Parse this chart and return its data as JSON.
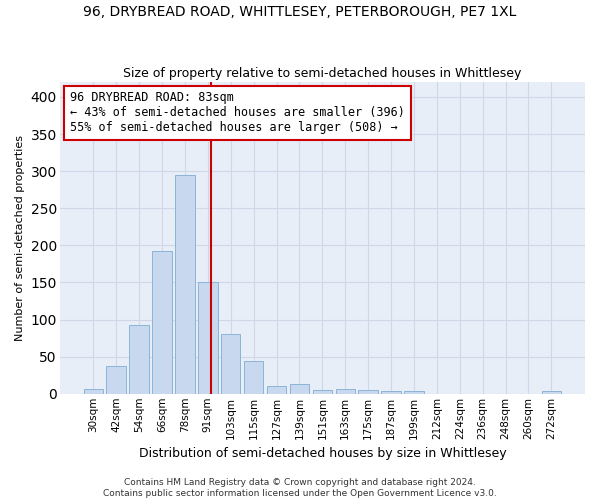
{
  "title1": "96, DRYBREAD ROAD, WHITTLESEY, PETERBOROUGH, PE7 1XL",
  "title2": "Size of property relative to semi-detached houses in Whittlesey",
  "xlabel": "Distribution of semi-detached houses by size in Whittlesey",
  "ylabel": "Number of semi-detached properties",
  "categories": [
    "30sqm",
    "42sqm",
    "54sqm",
    "66sqm",
    "78sqm",
    "91sqm",
    "103sqm",
    "115sqm",
    "127sqm",
    "139sqm",
    "151sqm",
    "163sqm",
    "175sqm",
    "187sqm",
    "199sqm",
    "212sqm",
    "224sqm",
    "236sqm",
    "248sqm",
    "260sqm",
    "272sqm"
  ],
  "values": [
    7,
    38,
    93,
    192,
    295,
    151,
    80,
    44,
    10,
    13,
    5,
    6,
    5,
    4,
    4,
    0,
    0,
    0,
    0,
    0,
    4
  ],
  "bar_color": "#c8d9ef",
  "bar_edge_color": "#8ab4d8",
  "vline_color": "#cc0000",
  "vline_pos": 5.15,
  "annotation_text": "96 DRYBREAD ROAD: 83sqm\n← 43% of semi-detached houses are smaller (396)\n55% of semi-detached houses are larger (508) →",
  "annotation_box_color": "#ffffff",
  "annotation_box_edge": "#cc0000",
  "footer": "Contains HM Land Registry data © Crown copyright and database right 2024.\nContains public sector information licensed under the Open Government Licence v3.0.",
  "ylim": [
    0,
    420
  ],
  "yticks": [
    0,
    50,
    100,
    150,
    200,
    250,
    300,
    350,
    400
  ],
  "grid_color": "#d0d8e8",
  "bg_color": "#e8eef8",
  "title1_fontsize": 10,
  "title2_fontsize": 9,
  "xlabel_fontsize": 9,
  "ylabel_fontsize": 8,
  "annotation_fontsize": 8.5,
  "tick_fontsize": 7.5,
  "footer_fontsize": 6.5
}
